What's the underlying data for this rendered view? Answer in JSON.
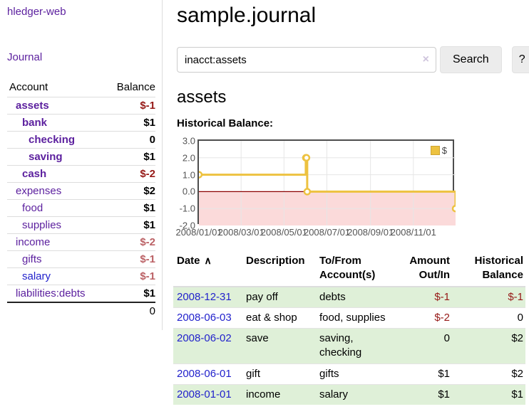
{
  "colors": {
    "link_purple": "#5b1f9e",
    "link_blue": "#2222cc",
    "negative_strong": "#961917",
    "negative_soft": "#bb6165",
    "row_stripe_green": "#dff0d8",
    "chart_line_gold": "#edc240",
    "chart_negative_fill": "#fbdada",
    "chart_zero_line": "#8b0000"
  },
  "icons": {
    "clear_search": "×",
    "sort_ascending": "∧"
  },
  "sidebar": {
    "brand": "hledger-web",
    "journal_label": "Journal",
    "accounts_table": {
      "account_header": "Account",
      "balance_header": "Balance",
      "rows": [
        {
          "name": "assets",
          "indent": 1,
          "bold": true,
          "link_color": "purple",
          "balance": "$-1",
          "balance_tone": "neg-strong"
        },
        {
          "name": "bank",
          "indent": 2,
          "bold": true,
          "link_color": "purple",
          "balance": "$1",
          "balance_tone": "pos"
        },
        {
          "name": "checking",
          "indent": 3,
          "bold": true,
          "link_color": "purple",
          "balance": "0",
          "balance_tone": "pos"
        },
        {
          "name": "saving",
          "indent": 3,
          "bold": true,
          "link_color": "purple",
          "balance": "$1",
          "balance_tone": "pos"
        },
        {
          "name": "cash",
          "indent": 2,
          "bold": true,
          "link_color": "purple",
          "balance": "$-2",
          "balance_tone": "neg-strong"
        },
        {
          "name": "expenses",
          "indent": 1,
          "bold": false,
          "link_color": "purple",
          "balance": "$2",
          "balance_tone": "pos"
        },
        {
          "name": "food",
          "indent": 2,
          "bold": false,
          "link_color": "purple",
          "balance": "$1",
          "balance_tone": "pos"
        },
        {
          "name": "supplies",
          "indent": 2,
          "bold": false,
          "link_color": "purple",
          "balance": "$1",
          "balance_tone": "pos"
        },
        {
          "name": "income",
          "indent": 1,
          "bold": false,
          "link_color": "purple",
          "balance": "$-2",
          "balance_tone": "neg-soft"
        },
        {
          "name": "gifts",
          "indent": 2,
          "bold": false,
          "link_color": "purple",
          "balance": "$-1",
          "balance_tone": "neg-soft"
        },
        {
          "name": "salary",
          "indent": 2,
          "bold": false,
          "link_color": "blue",
          "balance": "$-1",
          "balance_tone": "neg-soft"
        },
        {
          "name": "liabilities:debts",
          "indent": 1,
          "bold": false,
          "link_color": "purple",
          "balance": "$1",
          "balance_tone": "pos"
        }
      ],
      "total": "0"
    }
  },
  "main": {
    "title": "sample.journal",
    "search": {
      "value": "inacct:assets",
      "button_label": "Search",
      "help_label": "?"
    },
    "account_heading": "assets",
    "chart_heading": "Historical Balance:",
    "register_table": {
      "headers": {
        "date": "Date",
        "description": "Description",
        "accounts": "To/From Account(s)",
        "amount": "Amount Out/In",
        "balance": "Historical Balance"
      },
      "rows": [
        {
          "date": "2008-12-31",
          "description": "pay off",
          "accounts": "debts",
          "amount": "$-1",
          "balance": "$-1"
        },
        {
          "date": "2008-06-03",
          "description": "eat & shop",
          "accounts": "food, supplies",
          "amount": "$-2",
          "balance": "0"
        },
        {
          "date": "2008-06-02",
          "description": "save",
          "accounts": "saving, checking",
          "amount": "0",
          "balance": "$2"
        },
        {
          "date": "2008-06-01",
          "description": "gift",
          "accounts": "gifts",
          "amount": "$1",
          "balance": "$2"
        },
        {
          "date": "2008-01-01",
          "description": "income",
          "accounts": "salary",
          "amount": "$1",
          "balance": "$1"
        }
      ]
    }
  },
  "chart_data": {
    "type": "line",
    "title": "Historical Balance of assets",
    "legend": [
      {
        "label": "$",
        "color": "#edc240"
      }
    ],
    "step": true,
    "negative_region_shaded": true,
    "x_range_days": [
      0,
      365
    ],
    "x_ticks": [
      {
        "label": "2008/01/01",
        "day": 0
      },
      {
        "label": "2008/03/01",
        "day": 60
      },
      {
        "label": "2008/05/01",
        "day": 121
      },
      {
        "label": "2008/07/01",
        "day": 182
      },
      {
        "label": "2008/09/01",
        "day": 244
      },
      {
        "label": "2008/11/01",
        "day": 305
      }
    ],
    "y_ticks": [
      "3.0",
      "2.0",
      "1.0",
      "0.0",
      "-1.0",
      "-2.0"
    ],
    "ylim": [
      -2,
      3
    ],
    "points": [
      {
        "date": "2008-01-01",
        "day": 0,
        "value": 1
      },
      {
        "date": "2008-06-01",
        "day": 152,
        "value": 2
      },
      {
        "date": "2008-06-02",
        "day": 153,
        "value": 2
      },
      {
        "date": "2008-06-03",
        "day": 154,
        "value": 0
      },
      {
        "date": "2008-12-31",
        "day": 365,
        "value": -1
      }
    ]
  }
}
